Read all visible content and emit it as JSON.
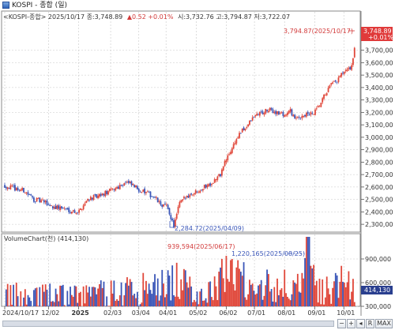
{
  "window": {
    "title": "KOSPI - 종합 (일)"
  },
  "header": {
    "info_prefix": "<KOSPI-종합> 2025/10/17 종:3,748.89",
    "info_change": "▲0.52 +0.01%",
    "info_suffix": "시:3,732.76 고:3,794.87 저:3,722.07"
  },
  "price_panel": {
    "high_annotation": "3,794.87(2025/10/17)",
    "low_annotation": "2,284.72(2025/04/09)",
    "last_price_label": "3,748.89",
    "last_change_label": "+0.01%"
  },
  "volume_panel": {
    "legend": "VolumeChart(천)  (414,130)",
    "peak_annotation_1": "939,594(2025/06/17)",
    "peak_annotation_2": "1,220,165(2025/08/25)",
    "last_volume_label": "414,130"
  },
  "toolbar": {
    "minus": "−",
    "plus": "+",
    "arrow": "◂",
    "r": "R",
    "max": "MAX"
  },
  "colors": {
    "up": "#e0473a",
    "down": "#3a56b8",
    "grid": "#c8c8c8",
    "last_bg": "#e03a3a",
    "vol_last_bg": "#2a3f8f"
  },
  "chart_data": [
    {
      "type": "candlestick",
      "title": "KOSPI-종합 (일)",
      "ylim": [
        2250,
        3850
      ],
      "y_ticks": [
        "2,300,00",
        "2,400,00",
        "2,500,00",
        "2,600,00",
        "2,700,00",
        "2,800,00",
        "2,900,00",
        "3,000,00",
        "3,100,00",
        "3,200,00",
        "3,300,00",
        "3,400,00",
        "3,500,00",
        "3,600,00",
        "3,700,00"
      ],
      "y_tick_values": [
        2300,
        2400,
        2500,
        2600,
        2700,
        2800,
        2900,
        3000,
        3100,
        3200,
        3300,
        3400,
        3500,
        3600,
        3700
      ],
      "x_labels": [
        "2024/10/17",
        "12/02",
        "2025",
        "02/03",
        "03/04",
        "04/01",
        "05/02",
        "06/02",
        "07/01",
        "08/01",
        "09/01",
        "10/01"
      ],
      "x_label_days": [
        0,
        45,
        76,
        109,
        138,
        166,
        197,
        228,
        257,
        288,
        319,
        349
      ],
      "close_anchors": [
        [
          0,
          2610
        ],
        [
          10,
          2590
        ],
        [
          20,
          2570
        ],
        [
          30,
          2500
        ],
        [
          40,
          2480
        ],
        [
          50,
          2440
        ],
        [
          60,
          2430
        ],
        [
          68,
          2410
        ],
        [
          76,
          2400
        ],
        [
          86,
          2510
        ],
        [
          96,
          2520
        ],
        [
          106,
          2560
        ],
        [
          116,
          2600
        ],
        [
          124,
          2640
        ],
        [
          130,
          2620
        ],
        [
          138,
          2580
        ],
        [
          146,
          2550
        ],
        [
          154,
          2520
        ],
        [
          160,
          2460
        ],
        [
          166,
          2450
        ],
        [
          170,
          2380
        ],
        [
          174,
          2285
        ],
        [
          180,
          2470
        ],
        [
          188,
          2530
        ],
        [
          196,
          2560
        ],
        [
          205,
          2600
        ],
        [
          214,
          2640
        ],
        [
          222,
          2700
        ],
        [
          226,
          2790
        ],
        [
          232,
          2880
        ],
        [
          236,
          2950
        ],
        [
          242,
          3030
        ],
        [
          248,
          3080
        ],
        [
          254,
          3140
        ],
        [
          260,
          3190
        ],
        [
          266,
          3200
        ],
        [
          272,
          3220
        ],
        [
          280,
          3200
        ],
        [
          288,
          3180
        ],
        [
          294,
          3210
        ],
        [
          300,
          3140
        ],
        [
          306,
          3180
        ],
        [
          312,
          3180
        ],
        [
          318,
          3190
        ],
        [
          324,
          3250
        ],
        [
          330,
          3350
        ],
        [
          336,
          3420
        ],
        [
          342,
          3450
        ],
        [
          346,
          3500
        ],
        [
          352,
          3530
        ],
        [
          356,
          3560
        ],
        [
          358,
          3610
        ],
        [
          361,
          3748.89
        ]
      ],
      "annotations": [
        {
          "label": "3,794.87(2025/10/17)",
          "day": 361,
          "value": 3794.87
        },
        {
          "label": "2,284.72(2025/04/09)",
          "day": 174,
          "value": 2284.72
        }
      ],
      "last": {
        "close": 3748.89,
        "change": 0.52,
        "change_pct": "+0.01%",
        "open": 3732.76,
        "high": 3794.87,
        "low": 3722.07
      }
    },
    {
      "type": "bar",
      "title": "VolumeChart(천)",
      "unit": "천",
      "ylim": [
        300000,
        1100000
      ],
      "y_ticks": [
        "900,000",
        "600,000",
        "300,000"
      ],
      "y_tick_values": [
        900000,
        600000,
        300000
      ],
      "volume_anchors": [
        [
          0,
          450000
        ],
        [
          30,
          480000
        ],
        [
          60,
          460000
        ],
        [
          80,
          470000
        ],
        [
          110,
          520000
        ],
        [
          140,
          560000
        ],
        [
          166,
          620000
        ],
        [
          174,
          700000
        ],
        [
          190,
          560000
        ],
        [
          210,
          520000
        ],
        [
          222,
          640000
        ],
        [
          228,
          939594
        ],
        [
          240,
          720000
        ],
        [
          260,
          650000
        ],
        [
          288,
          600000
        ],
        [
          306,
          560000
        ],
        [
          310,
          1220165
        ],
        [
          320,
          520000
        ],
        [
          340,
          600000
        ],
        [
          355,
          660000
        ],
        [
          361,
          414130
        ]
      ],
      "annotations": [
        {
          "label": "939,594(2025/06/17)",
          "day": 228,
          "value": 939594
        },
        {
          "label": "1,220,165(2025/08/25)",
          "day": 310,
          "value": 1220165
        }
      ],
      "last": 414130
    }
  ]
}
